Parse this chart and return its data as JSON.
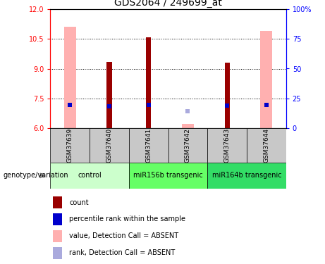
{
  "title": "GDS2064 / 249699_at",
  "samples": [
    "GSM37639",
    "GSM37640",
    "GSM37641",
    "GSM37642",
    "GSM37643",
    "GSM37644"
  ],
  "ylim_left": [
    6,
    12
  ],
  "ylim_right": [
    0,
    100
  ],
  "yticks_left": [
    6,
    7.5,
    9,
    10.5,
    12
  ],
  "yticks_right": [
    0,
    25,
    50,
    75,
    100
  ],
  "ytick_labels_right": [
    "0",
    "25",
    "50",
    "75",
    "100%"
  ],
  "pink_bar_values": [
    11.1,
    null,
    null,
    6.2,
    null,
    10.9
  ],
  "dark_red_bar_values": [
    null,
    9.35,
    10.57,
    null,
    9.3,
    null
  ],
  "blue_dot_y": [
    7.18,
    7.1,
    7.18,
    null,
    7.12,
    7.18
  ],
  "light_blue_dot_y": [
    null,
    null,
    null,
    6.85,
    null,
    null
  ],
  "pink_bar_color": "#FFB0B0",
  "dark_red_bar_color": "#990000",
  "blue_dot_color": "#0000CC",
  "light_blue_dot_color": "#AAAADD",
  "pink_bar_width": 0.3,
  "dark_red_bar_width": 0.13,
  "group_defs": [
    {
      "start": 0,
      "end": 1,
      "label": "control",
      "color": "#CCFFCC"
    },
    {
      "start": 2,
      "end": 3,
      "label": "miR156b transgenic",
      "color": "#66FF66"
    },
    {
      "start": 4,
      "end": 5,
      "label": "miR164b transgenic",
      "color": "#33DD66"
    }
  ],
  "legend_colors": [
    "#990000",
    "#0000CC",
    "#FFB0B0",
    "#AAAADD"
  ],
  "legend_labels": [
    "count",
    "percentile rank within the sample",
    "value, Detection Call = ABSENT",
    "rank, Detection Call = ABSENT"
  ],
  "genotype_label": "genotype/variation",
  "sample_box_color": "#C8C8C8",
  "title_fontsize": 10,
  "tick_fontsize": 7,
  "legend_fontsize": 7,
  "sample_fontsize": 6.5,
  "group_fontsize": 7
}
